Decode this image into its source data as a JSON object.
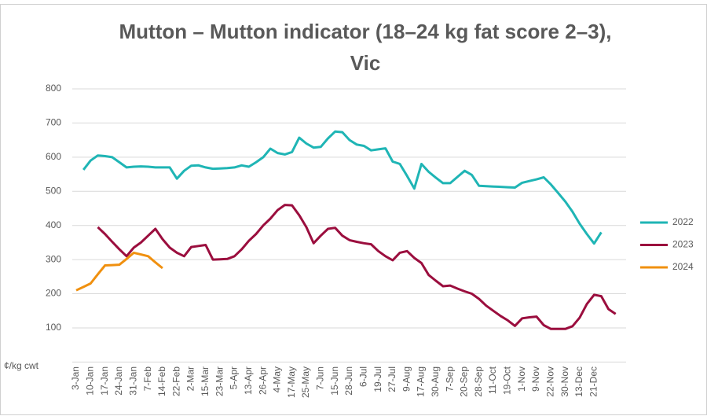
{
  "chart_data": {
    "type": "line",
    "title": "Mutton – Mutton indicator (18–24 kg fat score 2–3), Vic",
    "y_axis_label": "¢/kg cwt",
    "categories": [
      "3-Jan",
      null,
      "10-Jan",
      null,
      "17-Jan",
      null,
      "24-Jan",
      null,
      "31-Jan",
      null,
      "7-Feb",
      null,
      "14-Feb",
      null,
      "22-Feb",
      null,
      "2-Mar",
      null,
      "15-Mar",
      null,
      "23-Mar",
      null,
      "5-Apr",
      null,
      "13-Apr",
      null,
      "26-Apr",
      null,
      "4-May",
      null,
      "17-May",
      null,
      "25-May",
      null,
      "7-Jun",
      null,
      "15-Jun",
      null,
      "28-Jun",
      null,
      "6-Jul",
      null,
      "19-Jul",
      null,
      "27-Jul",
      null,
      "9-Aug",
      null,
      "17-Aug",
      null,
      "30-Aug",
      null,
      "7-Sep",
      null,
      "20-Sep",
      null,
      "28-Sep",
      null,
      "11-Oct",
      null,
      "19-Oct",
      null,
      "1-Nov",
      null,
      "9-Nov",
      null,
      "22-Nov",
      null,
      "30-Nov",
      null,
      "13-Dec",
      null,
      "21-Dec",
      null,
      null,
      null
    ],
    "series": [
      {
        "name": "2022",
        "color": "#1fb5b5",
        "values": [
          null,
          563,
          590,
          605,
          603,
          600,
          585,
          570,
          572,
          573,
          572,
          570,
          570,
          570,
          537,
          560,
          575,
          576,
          570,
          566,
          567,
          568,
          570,
          576,
          572,
          585,
          600,
          625,
          612,
          608,
          615,
          657,
          640,
          628,
          630,
          655,
          675,
          673,
          650,
          637,
          633,
          620,
          623,
          626,
          587,
          580,
          545,
          508,
          580,
          557,
          540,
          524,
          524,
          542,
          560,
          548,
          516,
          515,
          514,
          513,
          512,
          511,
          525,
          530,
          535,
          541,
          520,
          495,
          470,
          440,
          405,
          375,
          347,
          380,
          null,
          null
        ]
      },
      {
        "name": "2023",
        "color": "#9b0e3e",
        "values": [
          null,
          null,
          null,
          395,
          375,
          352,
          330,
          310,
          335,
          350,
          370,
          390,
          360,
          335,
          320,
          310,
          337,
          340,
          343,
          300,
          301,
          302,
          310,
          330,
          355,
          375,
          400,
          420,
          445,
          460,
          459,
          430,
          395,
          348,
          370,
          390,
          393,
          370,
          357,
          352,
          348,
          345,
          325,
          310,
          298,
          320,
          325,
          305,
          290,
          255,
          238,
          222,
          224,
          215,
          207,
          200,
          185,
          165,
          150,
          135,
          122,
          106,
          128,
          131,
          133,
          108,
          97,
          97,
          97,
          105,
          130,
          170,
          197,
          193,
          155,
          141
        ]
      },
      {
        "name": "2024",
        "color": "#f0900f",
        "values": [
          210,
          220,
          230,
          257,
          283,
          284,
          285,
          302,
          320,
          315,
          310,
          292,
          275,
          null,
          null,
          null,
          null,
          null,
          null,
          null,
          null,
          null,
          null,
          null,
          null,
          null,
          null,
          null,
          null,
          null,
          null,
          null,
          null,
          null,
          null,
          null,
          null,
          null,
          null,
          null,
          null,
          null,
          null,
          null,
          null,
          null,
          null,
          null,
          null,
          null,
          null,
          null,
          null,
          null,
          null,
          null,
          null,
          null,
          null,
          null,
          null,
          null,
          null,
          null,
          null,
          null,
          null,
          null,
          null,
          null,
          null,
          null,
          null,
          null,
          null,
          null
        ]
      }
    ],
    "ylim": [
      0,
      800
    ],
    "yticks": [
      100,
      200,
      300,
      400,
      500,
      600,
      700,
      800
    ],
    "grid": true,
    "legend": "right"
  }
}
